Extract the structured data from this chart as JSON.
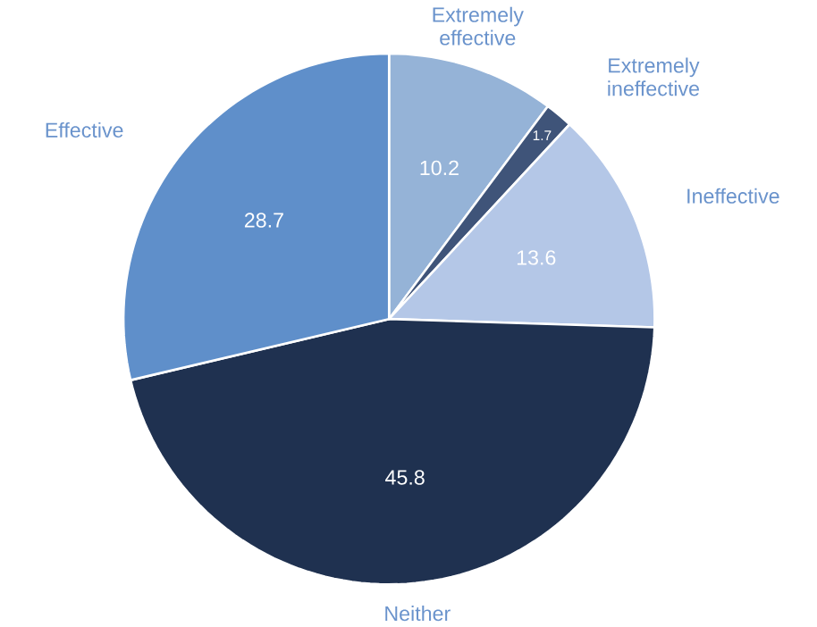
{
  "chart_data": {
    "type": "pie",
    "categories": [
      "Extremely effective",
      "Extremely ineffective",
      "Ineffective",
      "Neither",
      "Effective"
    ],
    "values": [
      10.2,
      1.7,
      13.6,
      45.8,
      28.7
    ],
    "colors": [
      "#95b3d7",
      "#3f5479",
      "#b4c7e7",
      "#1f3150",
      "#5f8fca"
    ],
    "data_labels": true
  }
}
